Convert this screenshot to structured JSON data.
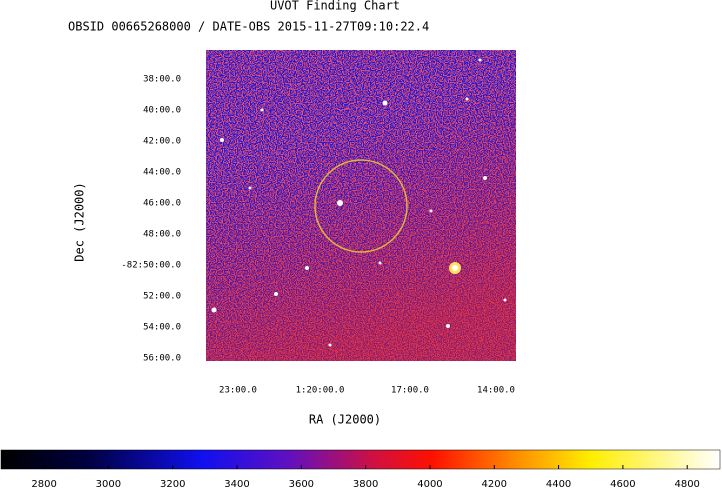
{
  "chart_data": {
    "type": "image",
    "title": "UVOT Finding Chart",
    "subtitle": "OBSID 00665268000 / DATE-OBS 2015-11-27T09:10:22.4",
    "x_label": "RA (J2000)",
    "y_label": "Dec (J2000)",
    "x_tick_labels": [
      "23:00.0",
      "1:20:00.0",
      "17:00.0",
      "14:00.0"
    ],
    "y_tick_labels": [
      "38:00.0",
      "40:00.0",
      "42:00.0",
      "44:00.0",
      "46:00.0",
      "48:00.0",
      "-82:50:00.0",
      "52:00.0",
      "54:00.0",
      "56:00.0"
    ],
    "colorbar": {
      "lim": [
        2666,
        4902
      ],
      "ticks": [
        2800,
        3000,
        3200,
        3400,
        3600,
        3800,
        4000,
        4200,
        4400,
        4600,
        4800
      ]
    },
    "circle_color": "#e3b23c"
  }
}
